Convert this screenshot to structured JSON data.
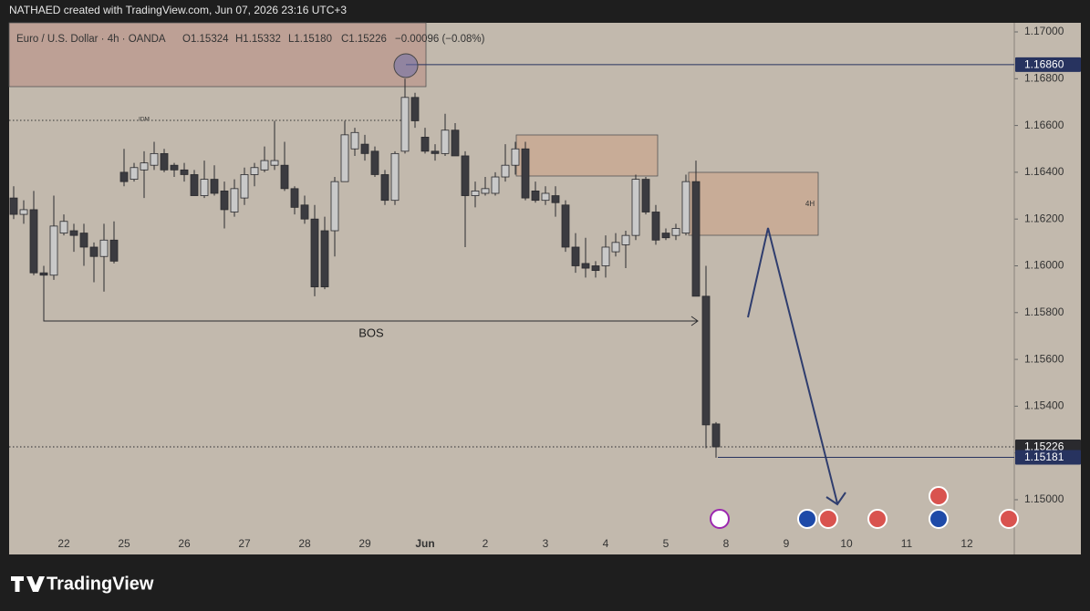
{
  "header": "NATHAED created with TradingView.com, Jun 07, 2026 23:16 UTC+3",
  "footer": {
    "brand": "TradingView"
  },
  "chart_data": {
    "type": "candlestick",
    "legend": {
      "symbol": "Euro / U.S. Dollar · 4h · OANDA",
      "open": "O1.15324",
      "high": "H1.15332",
      "low": "L1.15180",
      "close": "C1.15226",
      "change": "−0.00096 (−0.08%)"
    },
    "categories": [
      null,
      null,
      null,
      null,
      null,
      "22",
      null,
      null,
      null,
      null,
      null,
      "25",
      null,
      null,
      null,
      null,
      null,
      "26",
      null,
      null,
      null,
      null,
      null,
      "27",
      null,
      null,
      null,
      null,
      null,
      "28",
      null,
      null,
      null,
      null,
      null,
      "29",
      null,
      null,
      null,
      null,
      null,
      "Jun",
      null,
      null,
      null,
      null,
      null,
      "2",
      null,
      null,
      null,
      null,
      null,
      "3",
      null,
      null,
      null,
      null,
      null,
      "4",
      null,
      null,
      null,
      null,
      null,
      "5",
      null,
      null,
      null,
      null,
      null,
      "8",
      null,
      null,
      null,
      null,
      null,
      "9",
      null,
      null,
      null,
      null,
      null,
      "10",
      null,
      null,
      null,
      null,
      null,
      "11",
      null,
      null,
      null,
      null,
      null,
      "12"
    ],
    "open": [
      1.1629,
      1.1622,
      1.1624,
      1.1597,
      1.1596,
      1.1614,
      1.1615,
      1.1614,
      1.1608,
      1.1604,
      1.1611,
      1.164,
      1.1637,
      1.1641,
      1.1643,
      1.1648,
      1.1643,
      1.1641,
      1.1639,
      1.163,
      1.1637,
      1.1632,
      1.1623,
      1.1629,
      1.1639,
      1.1641,
      1.1643,
      1.1643,
      1.1633,
      1.1626,
      1.162,
      1.1615,
      1.1615,
      1.1636,
      1.165,
      1.1652,
      1.1649,
      1.1639,
      1.1628,
      1.1649,
      1.1672,
      1.1655,
      1.1649,
      1.1648,
      1.1658,
      1.1647,
      1.163,
      1.1631,
      1.1631,
      1.1638,
      1.1643,
      1.165,
      1.1632,
      1.1628,
      1.163,
      1.1626,
      1.1608,
      1.1601,
      1.16,
      1.16,
      1.1606,
      1.1609,
      1.1613,
      1.1637,
      1.1623,
      1.1614,
      1.1613,
      1.1614,
      1.1636,
      1.1587,
      1.15324,
      null,
      null,
      null,
      null,
      null,
      null,
      null,
      null,
      null,
      null,
      null,
      null,
      null,
      null,
      null,
      null,
      null,
      null,
      null,
      null,
      null,
      null,
      null,
      null,
      null
    ],
    "high": [
      1.1634,
      1.1628,
      1.1632,
      1.16,
      1.163,
      1.1622,
      1.1618,
      1.1618,
      1.161,
      1.1618,
      1.1619,
      1.165,
      1.1644,
      1.1649,
      1.1653,
      1.165,
      1.1644,
      1.1644,
      1.1641,
      1.1645,
      1.1643,
      1.1636,
      1.1637,
      1.1642,
      1.1644,
      1.1651,
      1.1662,
      1.1653,
      1.1634,
      1.163,
      1.1626,
      1.1621,
      1.1638,
      1.1662,
      1.1659,
      1.1656,
      1.1651,
      1.1641,
      1.1649,
      1.168,
      1.1674,
      1.1659,
      1.1652,
      1.1665,
      1.1661,
      1.1649,
      1.1636,
      1.1638,
      1.164,
      1.1652,
      1.1653,
      1.1653,
      1.1636,
      1.1634,
      1.1634,
      1.1628,
      1.1614,
      1.1612,
      1.1602,
      1.1613,
      1.1614,
      1.1615,
      1.1639,
      1.1638,
      1.1626,
      1.1616,
      1.1618,
      1.1639,
      1.1645,
      1.16,
      1.15332,
      null,
      null,
      null,
      null,
      null,
      null,
      null,
      null,
      null,
      null,
      null,
      null,
      null,
      null,
      null,
      null,
      null,
      null,
      null,
      null,
      null,
      null,
      null,
      null,
      null
    ],
    "low": [
      1.162,
      1.1618,
      1.1596,
      1.1593,
      1.1594,
      1.1613,
      1.1606,
      1.16,
      1.1593,
      1.1589,
      1.1601,
      1.1634,
      1.1636,
      1.1629,
      1.1641,
      1.164,
      1.1638,
      1.1636,
      1.163,
      1.1629,
      1.163,
      1.1616,
      1.1621,
      1.1626,
      1.1634,
      1.164,
      1.1641,
      1.1632,
      1.1622,
      1.1618,
      1.1587,
      1.159,
      1.1604,
      1.1636,
      1.1647,
      1.1645,
      1.1638,
      1.1626,
      1.1626,
      1.1648,
      1.1659,
      1.1648,
      1.1645,
      1.1647,
      1.1647,
      1.1608,
      1.1625,
      1.163,
      1.163,
      1.1636,
      1.1639,
      1.1628,
      1.1627,
      1.1626,
      1.1621,
      1.1606,
      1.1597,
      1.1595,
      1.1595,
      1.1595,
      1.1604,
      1.1599,
      1.1611,
      1.1622,
      1.1609,
      1.1611,
      1.1611,
      1.1613,
      1.1587,
      1.1522,
      1.1518,
      null,
      null,
      null,
      null,
      null,
      null,
      null,
      null,
      null,
      null,
      null,
      null,
      null,
      null,
      null,
      null,
      null,
      null,
      null,
      null,
      null,
      null,
      null,
      null,
      null
    ],
    "close": [
      1.1622,
      1.1624,
      1.1597,
      1.1596,
      1.1617,
      1.1619,
      1.1613,
      1.1608,
      1.1604,
      1.1611,
      1.1602,
      1.1636,
      1.1642,
      1.1644,
      1.1648,
      1.1641,
      1.1641,
      1.1639,
      1.163,
      1.1637,
      1.1631,
      1.1624,
      1.1633,
      1.1639,
      1.1642,
      1.1645,
      1.1645,
      1.1633,
      1.1625,
      1.162,
      1.1591,
      1.1591,
      1.1636,
      1.1656,
      1.1657,
      1.1648,
      1.1639,
      1.1628,
      1.1648,
      1.1672,
      1.1662,
      1.1649,
      1.1648,
      1.1658,
      1.1647,
      1.163,
      1.1632,
      1.1633,
      1.1638,
      1.1643,
      1.165,
      1.1629,
      1.1628,
      1.1631,
      1.1627,
      1.1608,
      1.16,
      1.1599,
      1.1598,
      1.1608,
      1.161,
      1.1613,
      1.1637,
      1.1623,
      1.1611,
      1.1612,
      1.1616,
      1.1636,
      1.1587,
      1.1532,
      1.15226,
      null,
      null,
      null,
      null,
      null,
      null,
      null,
      null,
      null,
      null,
      null,
      null,
      null,
      null,
      null,
      null,
      null,
      null,
      null,
      null,
      null,
      null,
      null,
      null,
      null
    ],
    "up_color": "#c9c9c9",
    "down_color": "#3b3b40",
    "ylim": [
      1.14766,
      1.17039
    ],
    "yticks": [
      {
        "value": 1.15,
        "label": "1.15000"
      },
      {
        "value": 1.152,
        "label": "1.15200"
      },
      {
        "value": 1.154,
        "label": "1.15400"
      },
      {
        "value": 1.156,
        "label": "1.15600"
      },
      {
        "value": 1.158,
        "label": "1.15800"
      },
      {
        "value": 1.16,
        "label": "1.16000"
      },
      {
        "value": 1.162,
        "label": "1.16200"
      },
      {
        "value": 1.164,
        "label": "1.16400"
      },
      {
        "value": 1.166,
        "label": "1.16600"
      },
      {
        "value": 1.168,
        "label": "1.16800"
      },
      {
        "value": 1.17,
        "label": "1.17000"
      }
    ],
    "grid": false,
    "price_lines": [
      {
        "value": 1.1686,
        "label": "1.16860",
        "color": "#27335f",
        "style": "solid"
      },
      {
        "value": 1.15226,
        "label": "1.15226",
        "color": "#2a2a2e",
        "style": "dotted"
      },
      {
        "value": 1.15181,
        "label": "1.15181",
        "color": "#27335f",
        "style": "solid"
      }
    ],
    "idm_line": {
      "value": 1.16622,
      "label": "IDM"
    },
    "annotations": {
      "bos": "BOS",
      "zone": "4H"
    }
  }
}
